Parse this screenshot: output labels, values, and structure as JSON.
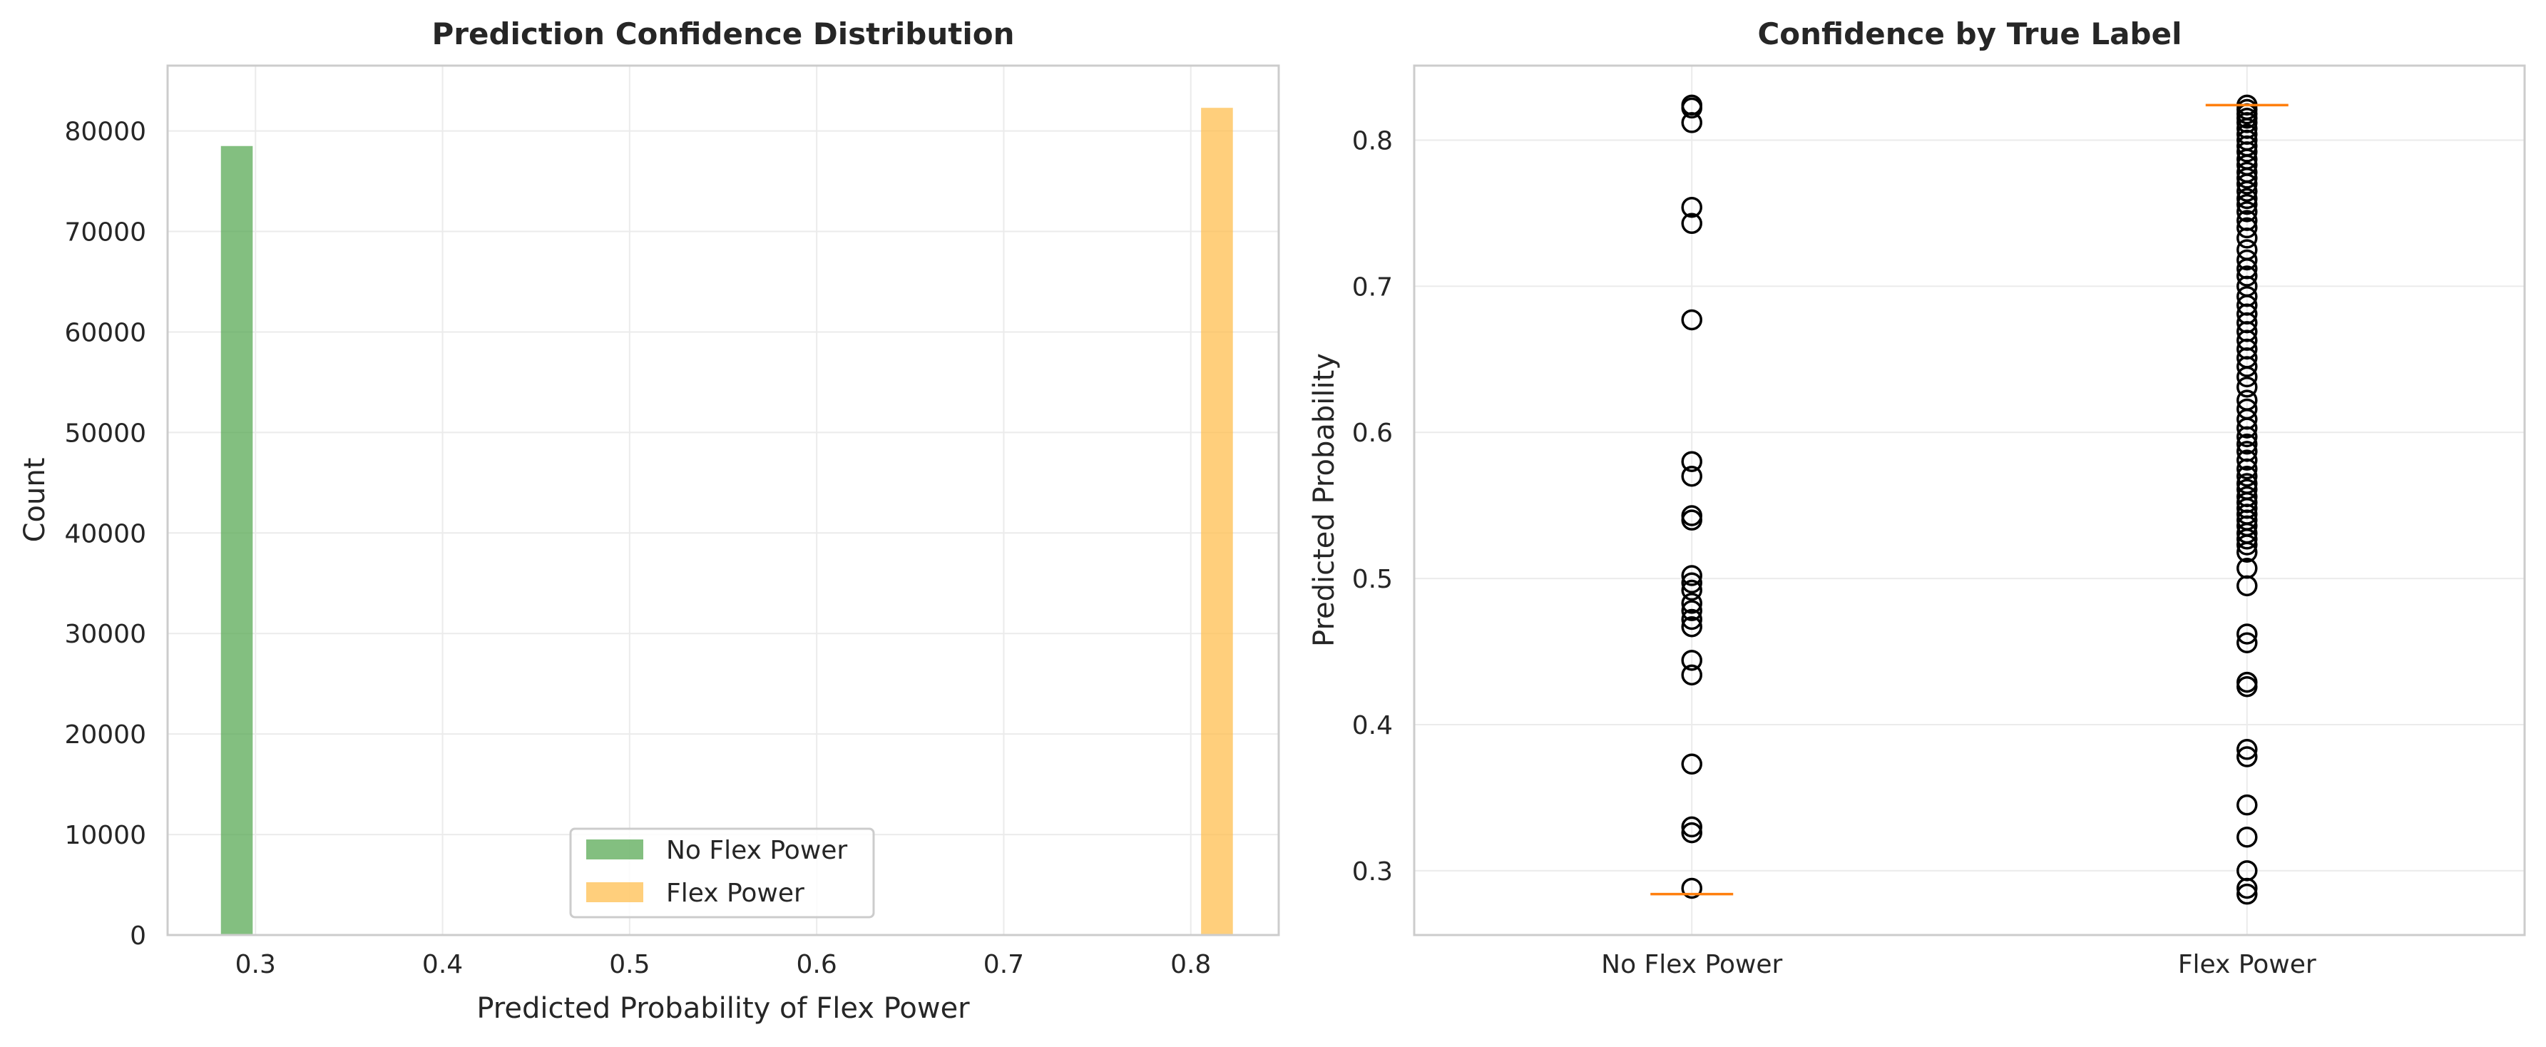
{
  "chart_data": [
    {
      "type": "bar",
      "title": "Prediction Confidence Distribution",
      "xlabel": "Predicted Probability of Flex Power",
      "ylabel": "Count",
      "xlim": [
        0.253,
        0.847
      ],
      "ylim": [
        0,
        86500
      ],
      "xticks": [
        "0.3",
        "0.4",
        "0.5",
        "0.6",
        "0.7",
        "0.8"
      ],
      "yticks": [
        "0",
        "10000",
        "20000",
        "30000",
        "40000",
        "50000",
        "60000",
        "70000",
        "80000"
      ],
      "grid": true,
      "legend_position": "bottom-center",
      "series": [
        {
          "name": "No Flex Power",
          "color": "#5aaa55",
          "bins": [
            {
              "x_start": 0.2815,
              "x_end": 0.2985,
              "count": 78500
            }
          ]
        },
        {
          "name": "Flex Power",
          "color": "#ffbf50",
          "bins": [
            {
              "x_start": 0.8055,
              "x_end": 0.8225,
              "count": 82300
            }
          ]
        }
      ]
    },
    {
      "type": "box",
      "title": "Confidence by True Label",
      "xlabel": "",
      "ylabel": "Predicted Probability",
      "categories": [
        "No Flex Power",
        "Flex Power"
      ],
      "ylim": [
        0.256,
        0.851
      ],
      "yticks": [
        "0.3",
        "0.4",
        "0.5",
        "0.6",
        "0.7",
        "0.8"
      ],
      "grid": true,
      "median_color": "#ff7f0e",
      "groups": [
        {
          "category": "No Flex Power",
          "median": 0.284,
          "outliers": [
            0.824,
            0.822,
            0.812,
            0.754,
            0.743,
            0.677,
            0.58,
            0.57,
            0.543,
            0.54,
            0.502,
            0.497,
            0.492,
            0.483,
            0.478,
            0.472,
            0.467,
            0.444,
            0.434,
            0.373,
            0.33,
            0.326,
            0.288
          ]
        },
        {
          "category": "Flex Power",
          "median": 0.824,
          "outliers": [
            0.824,
            0.821,
            0.818,
            0.815,
            0.812,
            0.808,
            0.804,
            0.8,
            0.796,
            0.792,
            0.787,
            0.783,
            0.778,
            0.774,
            0.77,
            0.765,
            0.76,
            0.756,
            0.751,
            0.745,
            0.74,
            0.733,
            0.725,
            0.718,
            0.712,
            0.707,
            0.7,
            0.693,
            0.687,
            0.681,
            0.675,
            0.669,
            0.663,
            0.657,
            0.651,
            0.645,
            0.638,
            0.631,
            0.622,
            0.616,
            0.609,
            0.603,
            0.597,
            0.592,
            0.587,
            0.581,
            0.575,
            0.57,
            0.565,
            0.561,
            0.556,
            0.552,
            0.548,
            0.544,
            0.54,
            0.536,
            0.531,
            0.527,
            0.523,
            0.518,
            0.507,
            0.495,
            0.462,
            0.456,
            0.429,
            0.426,
            0.383,
            0.378,
            0.345,
            0.323,
            0.3,
            0.288,
            0.284
          ]
        }
      ]
    }
  ]
}
